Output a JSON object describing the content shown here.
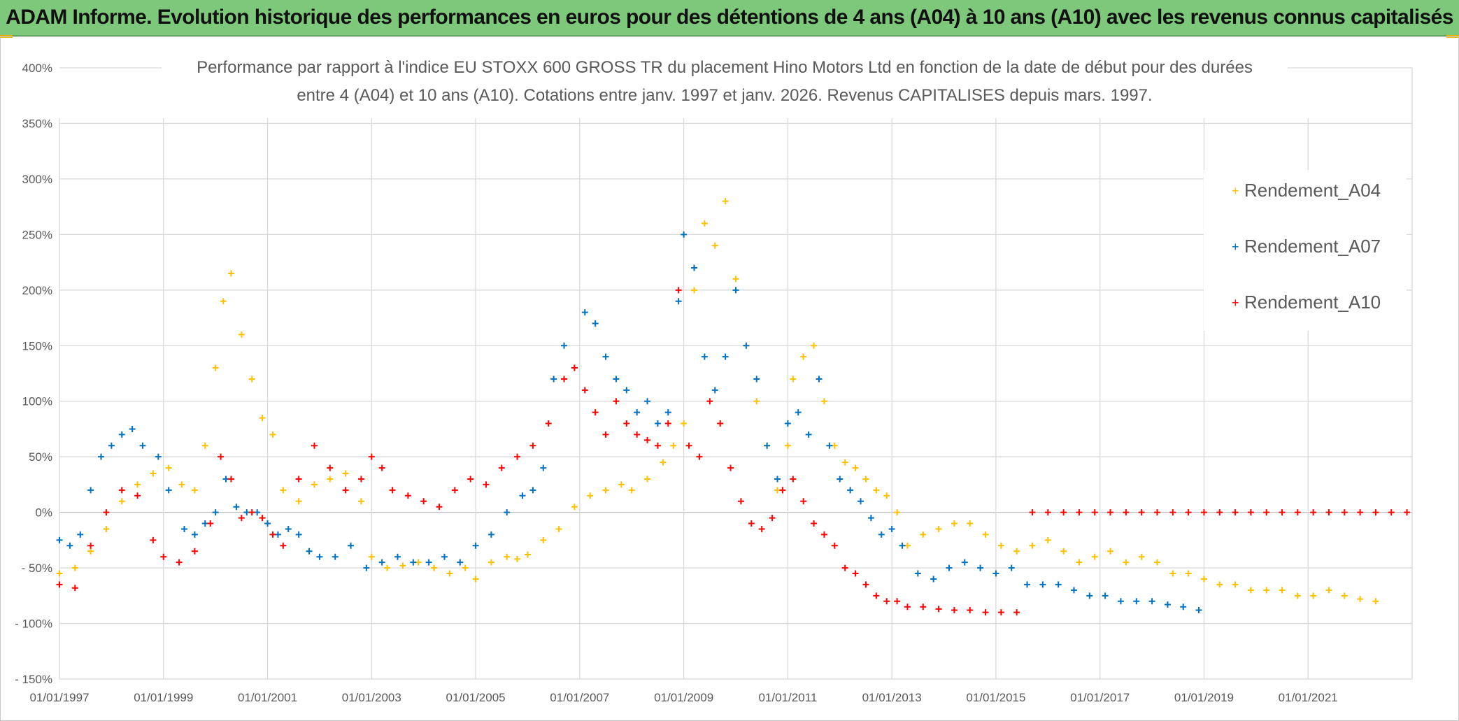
{
  "banner": {
    "title": "ADAM Informe. Evolution historique des performances en euros pour des détentions de 4 ans (A04) à 10 ans (A10) avec les revenus connus capitalisés"
  },
  "colors": {
    "banner_bg": "#7dc87a",
    "A04": "#ffc000",
    "A07": "#0070c0",
    "A10": "#ff0000",
    "grid": "#d9d9d9",
    "axis_text": "#595959"
  },
  "chart_data": {
    "type": "scatter",
    "title_line1": "Performance par rapport à l'indice EU STOXX 600 GROSS TR  du placement Hino Motors Ltd en fonction de la date de début pour des durées",
    "title_line2": "entre 4 (A04) et 10 ans (A10). Cotations entre janv. 1997 et janv. 2026. Revenus CAPITALISES depuis mars. 1997.",
    "xlabel": "",
    "ylabel": "",
    "xlim": [
      1997.0,
      2023.0
    ],
    "ylim": [
      -150,
      400
    ],
    "y_ticks": [
      -150,
      -100,
      -50,
      0,
      50,
      100,
      150,
      200,
      250,
      300,
      350,
      400
    ],
    "y_tick_labels": [
      "- 150%",
      "- 100%",
      "- 50%",
      "0%",
      "50%",
      "100%",
      "150%",
      "200%",
      "250%",
      "300%",
      "350%",
      "400%"
    ],
    "x_ticks": [
      1997,
      1999,
      2001,
      2003,
      2005,
      2007,
      2009,
      2011,
      2013,
      2015,
      2017,
      2019,
      2021
    ],
    "x_tick_labels": [
      "01/01/1997",
      "01/01/1999",
      "01/01/2001",
      "01/01/2003",
      "01/01/2005",
      "01/01/2007",
      "01/01/2009",
      "01/01/2011",
      "01/01/2013",
      "01/01/2015",
      "01/01/2017",
      "01/01/2019",
      "01/01/2021"
    ],
    "legend_position": "top-right",
    "marker": "+",
    "series": [
      {
        "name": "Rendement_A04",
        "color": "#ffc000",
        "x": [
          1997.0,
          1997.3,
          1997.6,
          1997.9,
          1998.2,
          1998.5,
          1998.8,
          1999.1,
          1999.35,
          1999.6,
          1999.8,
          2000.0,
          2000.15,
          2000.3,
          2000.5,
          2000.7,
          2000.9,
          2001.1,
          2001.3,
          2001.6,
          2001.9,
          2002.2,
          2002.5,
          2002.8,
          2003.0,
          2003.3,
          2003.6,
          2003.9,
          2004.2,
          2004.5,
          2004.8,
          2005.0,
          2005.3,
          2005.6,
          2005.8,
          2006.0,
          2006.3,
          2006.6,
          2006.9,
          2007.2,
          2007.5,
          2007.8,
          2008.0,
          2008.3,
          2008.6,
          2008.8,
          2009.0,
          2009.2,
          2009.4,
          2009.6,
          2009.8,
          2010.0,
          2010.2,
          2010.4,
          2010.6,
          2010.8,
          2011.0,
          2011.1,
          2011.3,
          2011.5,
          2011.7,
          2011.9,
          2012.1,
          2012.3,
          2012.5,
          2012.7,
          2012.9,
          2013.1,
          2013.3,
          2013.6,
          2013.9,
          2014.2,
          2014.5,
          2014.8,
          2015.1,
          2015.4,
          2015.7,
          2016.0,
          2016.3,
          2016.6,
          2016.9,
          2017.2,
          2017.5,
          2017.8,
          2018.1,
          2018.4,
          2018.7,
          2019.0,
          2019.3,
          2019.6,
          2019.9,
          2020.2,
          2020.5,
          2020.8,
          2021.1,
          2021.4,
          2021.7,
          2022.0,
          2022.3
        ],
        "y": [
          -55,
          -50,
          -35,
          -15,
          10,
          25,
          35,
          40,
          25,
          20,
          60,
          130,
          190,
          215,
          160,
          120,
          85,
          70,
          20,
          10,
          25,
          30,
          35,
          10,
          -40,
          -50,
          -48,
          -45,
          -50,
          -55,
          -50,
          -60,
          -45,
          -40,
          -42,
          -38,
          -25,
          -15,
          5,
          15,
          20,
          25,
          20,
          30,
          45,
          60,
          80,
          200,
          260,
          240,
          280,
          210,
          150,
          100,
          60,
          20,
          60,
          120,
          140,
          150,
          100,
          60,
          45,
          40,
          30,
          20,
          15,
          0,
          -30,
          -20,
          -15,
          -10,
          -10,
          -20,
          -30,
          -35,
          -30,
          -25,
          -35,
          -45,
          -40,
          -35,
          -45,
          -40,
          -45,
          -55,
          -55,
          -60,
          -65,
          -65,
          -70,
          -70,
          -70,
          -75,
          -75,
          -70,
          -75,
          -78,
          -80
        ]
      },
      {
        "name": "Rendement_A07",
        "color": "#0070c0",
        "x": [
          1997.0,
          1997.2,
          1997.4,
          1997.6,
          1997.8,
          1998.0,
          1998.2,
          1998.4,
          1998.6,
          1998.9,
          1999.1,
          1999.4,
          1999.6,
          1999.8,
          2000.0,
          2000.2,
          2000.4,
          2000.6,
          2000.8,
          2001.0,
          2001.2,
          2001.4,
          2001.6,
          2001.8,
          2002.0,
          2002.3,
          2002.6,
          2002.9,
          2003.2,
          2003.5,
          2003.8,
          2004.1,
          2004.4,
          2004.7,
          2005.0,
          2005.3,
          2005.6,
          2005.9,
          2006.1,
          2006.3,
          2006.5,
          2006.7,
          2006.9,
          2007.1,
          2007.3,
          2007.5,
          2007.7,
          2007.9,
          2008.1,
          2008.3,
          2008.5,
          2008.7,
          2008.9,
          2009.0,
          2009.2,
          2009.4,
          2009.6,
          2009.8,
          2010.0,
          2010.2,
          2010.4,
          2010.6,
          2010.8,
          2011.0,
          2011.2,
          2011.4,
          2011.6,
          2011.8,
          2012.0,
          2012.2,
          2012.4,
          2012.6,
          2012.8,
          2013.0,
          2013.2,
          2013.5,
          2013.8,
          2014.1,
          2014.4,
          2014.7,
          2015.0,
          2015.3,
          2015.6,
          2015.9,
          2016.2,
          2016.5,
          2016.8,
          2017.1,
          2017.4,
          2017.7,
          2018.0,
          2018.3,
          2018.6,
          2018.9
        ],
        "y": [
          -25,
          -30,
          -20,
          20,
          50,
          60,
          70,
          75,
          60,
          50,
          20,
          -15,
          -20,
          -10,
          0,
          30,
          5,
          0,
          0,
          -10,
          -20,
          -15,
          -20,
          -35,
          -40,
          -40,
          -30,
          -50,
          -45,
          -40,
          -45,
          -45,
          -40,
          -45,
          -30,
          -20,
          0,
          15,
          20,
          40,
          120,
          150,
          130,
          180,
          170,
          140,
          120,
          110,
          90,
          100,
          80,
          90,
          190,
          250,
          220,
          140,
          110,
          140,
          200,
          150,
          120,
          60,
          30,
          80,
          90,
          70,
          120,
          60,
          30,
          20,
          10,
          -5,
          -20,
          -15,
          -30,
          -55,
          -60,
          -50,
          -45,
          -50,
          -55,
          -50,
          -65,
          -65,
          -65,
          -70,
          -75,
          -75,
          -80,
          -80,
          -80,
          -83,
          -85,
          -88
        ]
      },
      {
        "name": "Rendement_A10",
        "color": "#ff0000",
        "x": [
          1997.0,
          1997.3,
          1997.6,
          1997.9,
          1998.2,
          1998.5,
          1998.8,
          1999.0,
          1999.3,
          1999.6,
          1999.9,
          2000.1,
          2000.3,
          2000.5,
          2000.7,
          2000.9,
          2001.1,
          2001.3,
          2001.6,
          2001.9,
          2002.2,
          2002.5,
          2002.8,
          2003.0,
          2003.2,
          2003.4,
          2003.7,
          2004.0,
          2004.3,
          2004.6,
          2004.9,
          2005.2,
          2005.5,
          2005.8,
          2006.1,
          2006.4,
          2006.7,
          2006.9,
          2007.1,
          2007.3,
          2007.5,
          2007.7,
          2007.9,
          2008.1,
          2008.3,
          2008.5,
          2008.7,
          2008.9,
          2009.1,
          2009.3,
          2009.5,
          2009.7,
          2009.9,
          2010.1,
          2010.3,
          2010.5,
          2010.7,
          2010.9,
          2011.1,
          2011.3,
          2011.5,
          2011.7,
          2011.9,
          2012.1,
          2012.3,
          2012.5,
          2012.7,
          2012.9,
          2013.1,
          2013.3,
          2013.6,
          2013.9,
          2014.2,
          2014.5,
          2014.8,
          2015.1,
          2015.4,
          2015.7,
          2016.0,
          2016.3,
          2016.6,
          2016.9,
          2017.2,
          2017.5,
          2017.8,
          2018.1,
          2018.4,
          2018.7,
          2019.0,
          2019.3,
          2019.6,
          2019.9,
          2020.2,
          2020.5,
          2020.8,
          2021.1,
          2021.4,
          2021.7,
          2022.0,
          2022.3,
          2022.6,
          2022.9
        ],
        "y": [
          -65,
          -68,
          -30,
          0,
          20,
          15,
          -25,
          -40,
          -45,
          -35,
          -10,
          50,
          30,
          -5,
          0,
          -5,
          -20,
          -30,
          30,
          60,
          40,
          20,
          30,
          50,
          40,
          20,
          15,
          10,
          5,
          20,
          30,
          25,
          40,
          50,
          60,
          80,
          120,
          130,
          110,
          90,
          70,
          100,
          80,
          70,
          65,
          60,
          80,
          200,
          60,
          50,
          100,
          80,
          40,
          10,
          -10,
          -15,
          -5,
          20,
          30,
          10,
          -10,
          -20,
          -30,
          -50,
          -55,
          -65,
          -75,
          -80,
          -80,
          -85,
          -85,
          -87,
          -88,
          -88,
          -90,
          -90,
          -90,
          0,
          0,
          0,
          0,
          0,
          0,
          0,
          0,
          0,
          0,
          0,
          0,
          0,
          0,
          0,
          0,
          0,
          0,
          0,
          0,
          0,
          0,
          0,
          0,
          0
        ]
      }
    ]
  }
}
